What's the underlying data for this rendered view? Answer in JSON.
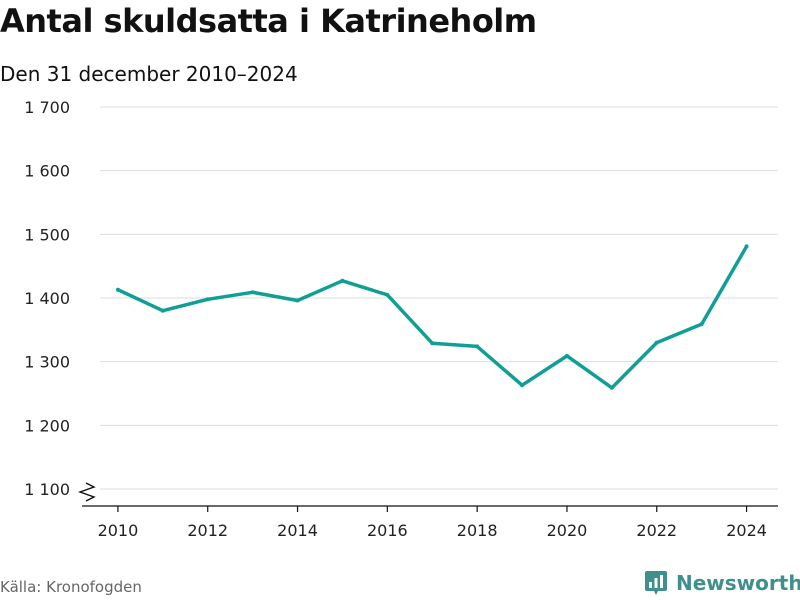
{
  "header": {
    "title": "Antal skuldsatta i Katrineholm",
    "subtitle": "Den 31 december 2010–2024"
  },
  "footer": {
    "source": "Källa: Kronofogden",
    "brand": "Newsworthy"
  },
  "colors": {
    "line": "#0f9f97",
    "grid": "#dddddd",
    "brand": "#3f8f8a"
  },
  "chart_data": {
    "type": "line",
    "title": "Antal skuldsatta i Katrineholm",
    "subtitle": "Den 31 december 2010–2024",
    "x": [
      2010,
      2011,
      2012,
      2013,
      2014,
      2015,
      2016,
      2017,
      2018,
      2019,
      2020,
      2021,
      2022,
      2023,
      2024
    ],
    "series": [
      {
        "values": [
          1413,
          1380,
          1398,
          1409,
          1396,
          1427,
          1405,
          1329,
          1324,
          1263,
          1309,
          1259,
          1330,
          1359,
          1481
        ]
      }
    ],
    "y_ticks": [
      1100,
      1200,
      1300,
      1400,
      1500,
      1600,
      1700
    ],
    "y_tick_labels": [
      "1 100",
      "1 200",
      "1 300",
      "1 400",
      "1 500",
      "1 600",
      "1 700"
    ],
    "x_ticks": [
      2010,
      2012,
      2014,
      2016,
      2018,
      2020,
      2022,
      2024
    ],
    "x_tick_labels": [
      "2010",
      "2012",
      "2014",
      "2016",
      "2018",
      "2020",
      "2022",
      "2024"
    ],
    "ylim": [
      1100,
      1700
    ],
    "xlim": [
      2009.2,
      2024.7
    ],
    "grid": true,
    "axis_break": true
  }
}
